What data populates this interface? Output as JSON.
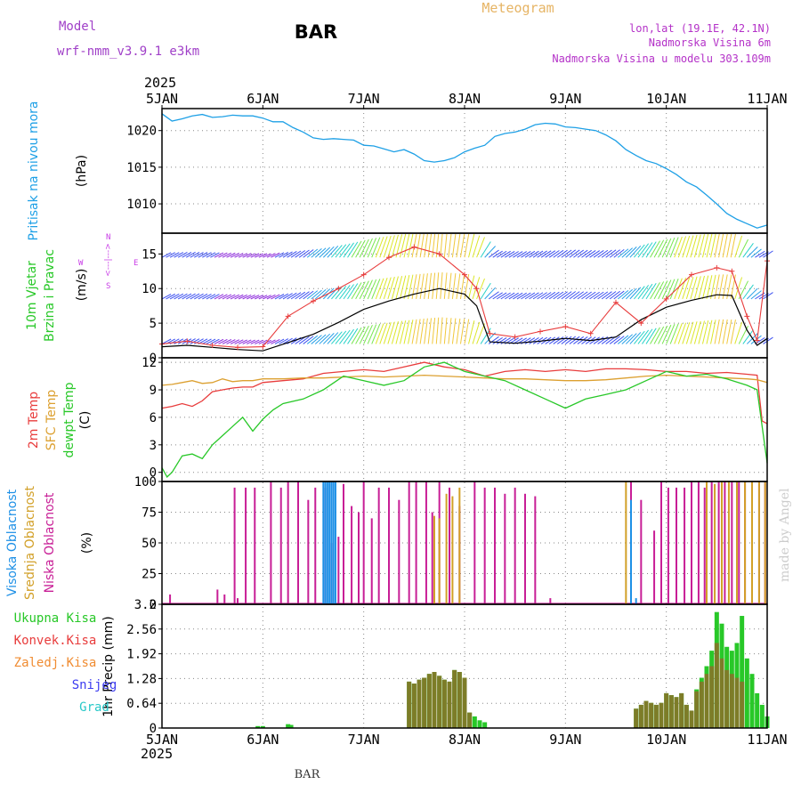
{
  "header": {
    "model_label": "Model",
    "model_name": "wrf-nmm_v3.9.1 e3km",
    "station": "BAR",
    "title": "Meteogram",
    "lonlat": "lon,lat (19.1E, 42.1N)",
    "altitude": "Nadmorska Visina 6m",
    "model_altitude": "Nadmorska Visina u modelu 303.109m",
    "year_top": "2025",
    "year_bottom": "2025",
    "footer_station": "BAR",
    "credit": "made by Angel"
  },
  "colors": {
    "pressure": "#1ea0e6",
    "temp2m": "#e83c3c",
    "sfc": "#dca030",
    "dewpt": "#28c828",
    "cloud_high": "#1e90e6",
    "cloud_mid": "#d2a028",
    "cloud_low": "#c81e96",
    "precip_total": "#28c828",
    "precip_conv": "#e83c3c",
    "precip_frz": "#f08c32",
    "snow": "#3c3cf0",
    "grad": "#28c8c8",
    "gust": "#e83c3c",
    "wind_mean": "#000000",
    "model_label": "#a040c8",
    "title": "#e6b464",
    "info": "#b432c8",
    "credit": "#cccccc",
    "wind_axis": "#c83ce6"
  },
  "time_axis": {
    "start_day": 5,
    "end_day": 11,
    "ticks": [
      "5JAN",
      "6JAN",
      "7JAN",
      "8JAN",
      "9JAN",
      "10JAN",
      "11JAN"
    ]
  },
  "chart_data": [
    {
      "id": "pressure",
      "type": "line",
      "ylabel": "Pritisak na nivou mora",
      "units": "(hPa)",
      "ylim": [
        1006,
        1023
      ],
      "yticks": [
        1010,
        1015,
        1020
      ],
      "x": [
        5.0,
        5.1,
        5.2,
        5.3,
        5.4,
        5.5,
        5.6,
        5.7,
        5.8,
        5.9,
        6.0,
        6.1,
        6.2,
        6.3,
        6.4,
        6.5,
        6.6,
        6.7,
        6.8,
        6.9,
        7.0,
        7.1,
        7.2,
        7.3,
        7.4,
        7.5,
        7.6,
        7.7,
        7.8,
        7.9,
        8.0,
        8.1,
        8.2,
        8.3,
        8.4,
        8.5,
        8.6,
        8.7,
        8.8,
        8.9,
        9.0,
        9.1,
        9.2,
        9.3,
        9.4,
        9.5,
        9.6,
        9.7,
        9.8,
        9.9,
        10.0,
        10.1,
        10.2,
        10.3,
        10.4,
        10.5,
        10.6,
        10.7,
        10.8,
        10.9,
        11.0
      ],
      "values": [
        1022.3,
        1021.3,
        1021.6,
        1022.0,
        1022.2,
        1021.8,
        1021.9,
        1022.1,
        1022.0,
        1022.0,
        1021.7,
        1021.2,
        1021.2,
        1020.4,
        1019.8,
        1019.0,
        1018.8,
        1018.9,
        1018.8,
        1018.7,
        1018.0,
        1017.9,
        1017.5,
        1017.1,
        1017.4,
        1016.8,
        1015.9,
        1015.7,
        1015.9,
        1016.3,
        1017.1,
        1017.6,
        1018.0,
        1019.2,
        1019.6,
        1019.8,
        1020.2,
        1020.8,
        1021.0,
        1020.9,
        1020.5,
        1020.4,
        1020.2,
        1020.0,
        1019.4,
        1018.6,
        1017.4,
        1016.6,
        1015.9,
        1015.5,
        1014.8,
        1014.0,
        1013.0,
        1012.3,
        1011.2,
        1010.0,
        1008.7,
        1007.9,
        1007.3,
        1006.7,
        1007.1
      ]
    },
    {
      "id": "wind",
      "type": "line",
      "ylabel": [
        "10m Vjetar",
        "Brzina i Pravac"
      ],
      "units": "(m/s)",
      "ylim": [
        0,
        18
      ],
      "yticks": [
        0,
        5,
        10,
        15
      ],
      "compass": {
        "n": "N",
        "s": "S",
        "e": "E",
        "w": "W",
        "arrow": "<---|--->"
      },
      "series": [
        {
          "name": "mean wind",
          "x": [
            5.0,
            5.25,
            5.5,
            5.75,
            6.0,
            6.25,
            6.5,
            6.75,
            7.0,
            7.25,
            7.5,
            7.75,
            8.0,
            8.12,
            8.25,
            8.5,
            8.75,
            9.0,
            9.25,
            9.5,
            9.75,
            10.0,
            10.25,
            10.5,
            10.65,
            10.8,
            10.9,
            11.0
          ],
          "values": [
            1.6,
            1.8,
            1.5,
            1.2,
            1.0,
            2.2,
            3.4,
            5.1,
            7.0,
            8.2,
            9.2,
            10.0,
            9.2,
            7.5,
            2.3,
            2.1,
            2.4,
            2.8,
            2.5,
            3.0,
            5.5,
            7.3,
            8.3,
            9.1,
            9.0,
            4.0,
            1.8,
            2.8
          ]
        },
        {
          "name": "gust",
          "x": [
            5.0,
            5.25,
            5.5,
            5.75,
            6.0,
            6.25,
            6.5,
            6.75,
            7.0,
            7.25,
            7.5,
            7.75,
            8.0,
            8.12,
            8.25,
            8.5,
            8.75,
            9.0,
            9.25,
            9.5,
            9.75,
            10.0,
            10.25,
            10.5,
            10.65,
            10.8,
            10.9,
            11.0
          ],
          "values": [
            2.0,
            2.4,
            1.8,
            1.5,
            1.6,
            6.0,
            8.2,
            10.0,
            12.0,
            14.5,
            16.0,
            15.0,
            12.0,
            10.0,
            3.5,
            3.0,
            3.8,
            4.5,
            3.5,
            8.0,
            5.0,
            8.5,
            12.0,
            13.0,
            12.5,
            6.0,
            2.5,
            14.0
          ]
        }
      ]
    },
    {
      "id": "temperature",
      "type": "line",
      "ylabel": [
        "2m Temp",
        "SFC Temp",
        "dewpt Temp"
      ],
      "units": "(C)",
      "ylim": [
        -1,
        12.5
      ],
      "yticks": [
        0,
        3,
        6,
        9,
        12
      ],
      "series": [
        {
          "name": "2m Temp",
          "x": [
            5.0,
            5.1,
            5.2,
            5.3,
            5.4,
            5.5,
            5.6,
            5.7,
            5.8,
            5.9,
            6.0,
            6.2,
            6.4,
            6.6,
            6.8,
            7.0,
            7.2,
            7.4,
            7.6,
            7.8,
            8.0,
            8.2,
            8.4,
            8.6,
            8.8,
            9.0,
            9.2,
            9.4,
            9.6,
            9.8,
            10.0,
            10.2,
            10.4,
            10.6,
            10.8,
            10.9,
            10.95,
            11.0
          ],
          "values": [
            7.0,
            7.2,
            7.5,
            7.2,
            7.8,
            8.8,
            9.0,
            9.2,
            9.3,
            9.3,
            9.8,
            10.0,
            10.2,
            10.8,
            11.0,
            11.2,
            11.0,
            11.5,
            12.0,
            11.5,
            11.2,
            10.5,
            11.0,
            11.2,
            11.0,
            11.2,
            11.0,
            11.3,
            11.3,
            11.2,
            11.0,
            11.0,
            10.8,
            10.9,
            10.7,
            10.6,
            5.6,
            5.3
          ]
        },
        {
          "name": "SFC Temp",
          "x": [
            5.0,
            5.1,
            5.2,
            5.3,
            5.4,
            5.5,
            5.6,
            5.7,
            5.8,
            5.9,
            6.0,
            6.2,
            6.4,
            6.6,
            6.8,
            7.0,
            7.2,
            7.4,
            7.6,
            7.8,
            8.0,
            8.2,
            8.4,
            8.6,
            8.8,
            9.0,
            9.2,
            9.4,
            9.6,
            9.8,
            10.0,
            10.2,
            10.4,
            10.6,
            10.8,
            10.9,
            11.0
          ],
          "values": [
            9.5,
            9.6,
            9.8,
            10.0,
            9.7,
            9.8,
            10.2,
            9.9,
            10.0,
            10.0,
            10.2,
            10.2,
            10.3,
            10.3,
            10.4,
            10.5,
            10.4,
            10.5,
            10.6,
            10.5,
            10.4,
            10.3,
            10.2,
            10.2,
            10.1,
            10.0,
            10.0,
            10.1,
            10.3,
            10.5,
            10.6,
            10.5,
            10.4,
            10.3,
            10.2,
            10.1,
            9.8
          ]
        },
        {
          "name": "dewpt Temp",
          "x": [
            5.0,
            5.05,
            5.1,
            5.2,
            5.3,
            5.4,
            5.5,
            5.6,
            5.7,
            5.8,
            5.9,
            6.0,
            6.1,
            6.2,
            6.4,
            6.6,
            6.8,
            7.0,
            7.2,
            7.4,
            7.6,
            7.8,
            8.0,
            8.2,
            8.4,
            8.6,
            8.8,
            9.0,
            9.2,
            9.4,
            9.6,
            9.8,
            10.0,
            10.2,
            10.4,
            10.6,
            10.8,
            10.9,
            11.0
          ],
          "values": [
            0.5,
            -0.5,
            0.0,
            1.8,
            2.0,
            1.5,
            3.0,
            4.0,
            5.0,
            6.0,
            4.5,
            5.8,
            6.8,
            7.5,
            8.0,
            9.0,
            10.5,
            10.0,
            9.5,
            10.0,
            11.5,
            12.0,
            11.0,
            10.5,
            10.0,
            9.0,
            8.0,
            7.0,
            8.0,
            8.5,
            9.0,
            10.0,
            11.0,
            10.5,
            10.7,
            10.2,
            9.5,
            9.0,
            1.0
          ]
        }
      ]
    },
    {
      "id": "cloud",
      "type": "bar",
      "ylabel": [
        "Visoka Oblacnost",
        "Srednja Oblacnost",
        "Niska Oblacnost"
      ],
      "units": "(%)",
      "ylim": [
        0,
        100
      ],
      "yticks": [
        0,
        25,
        50,
        75,
        100
      ],
      "series": [
        {
          "name": "Niska Oblacnost",
          "x": [
            5.08,
            5.55,
            5.62,
            5.72,
            5.75,
            5.83,
            5.92,
            6.08,
            6.18,
            6.25,
            6.35,
            6.45,
            6.52,
            6.62,
            6.68,
            6.75,
            6.8,
            6.88,
            6.95,
            7.0,
            7.08,
            7.15,
            7.25,
            7.35,
            7.45,
            7.52,
            7.62,
            7.68,
            7.75,
            7.85,
            7.95,
            8.1,
            8.2,
            8.3,
            8.4,
            8.5,
            8.6,
            8.7,
            8.85,
            9.65,
            9.75,
            9.88,
            9.95,
            10.02,
            10.1,
            10.18,
            10.25,
            10.32,
            10.38,
            10.45,
            10.52,
            10.58,
            10.65,
            10.72,
            10.78,
            10.85,
            10.92,
            10.98
          ],
          "values": [
            8,
            12,
            8,
            95,
            5,
            95,
            95,
            100,
            95,
            100,
            100,
            85,
            95,
            95,
            50,
            55,
            98,
            80,
            75,
            100,
            70,
            95,
            95,
            85,
            100,
            100,
            100,
            75,
            100,
            95,
            80,
            100,
            95,
            95,
            90,
            95,
            90,
            88,
            5,
            100,
            85,
            60,
            100,
            95,
            95,
            95,
            100,
            100,
            95,
            100,
            100,
            100,
            100,
            100,
            100,
            100,
            100,
            100
          ]
        },
        {
          "name": "Srednja Oblacnost",
          "x": [
            7.7,
            7.75,
            7.82,
            7.88,
            7.95,
            9.6,
            10.4,
            10.48,
            10.55,
            10.62,
            10.7,
            10.78,
            10.85,
            10.92,
            10.98
          ],
          "values": [
            72,
            70,
            90,
            88,
            95,
            100,
            100,
            98,
            100,
            100,
            100,
            100,
            100,
            100,
            100
          ]
        },
        {
          "name": "Visoka Oblacnost",
          "x": [
            6.6,
            6.62,
            6.64,
            6.66,
            6.68,
            6.7,
            6.72,
            9.65,
            9.7
          ],
          "values": [
            100,
            100,
            100,
            100,
            100,
            100,
            100,
            85,
            5
          ]
        }
      ]
    },
    {
      "id": "precip",
      "type": "bar",
      "ylabel": "1hr Precip",
      "units": "(mm)",
      "ylim": [
        0,
        3.2
      ],
      "yticks": [
        0,
        0.64,
        1.28,
        1.92,
        2.56,
        3.2
      ],
      "ytick_labels": [
        "0",
        "0.64",
        "1.28",
        "1.92",
        "2.56",
        "3.2"
      ],
      "legend": [
        "Ukupna Kisa",
        "Konvek.Kisa",
        "Zaledj.Kisa",
        "Snijeg",
        "Grad"
      ],
      "total": {
        "x": [
          5.95,
          6.0,
          6.25,
          6.28,
          7.45,
          7.5,
          7.55,
          7.6,
          7.65,
          7.7,
          7.75,
          7.8,
          7.85,
          7.9,
          7.95,
          8.0,
          8.05,
          8.1,
          8.15,
          8.2,
          9.7,
          9.75,
          9.8,
          9.85,
          9.9,
          9.95,
          10.0,
          10.05,
          10.1,
          10.15,
          10.2,
          10.25,
          10.3,
          10.35,
          10.4,
          10.45,
          10.5,
          10.55,
          10.6,
          10.65,
          10.7,
          10.75,
          10.8,
          10.85,
          10.9,
          10.95,
          11.0
        ],
        "values": [
          0.05,
          0.05,
          0.1,
          0.08,
          1.2,
          1.15,
          1.25,
          1.3,
          1.4,
          1.45,
          1.35,
          1.25,
          1.2,
          1.5,
          1.45,
          1.3,
          0.4,
          0.3,
          0.2,
          0.15,
          0.5,
          0.6,
          0.7,
          0.65,
          0.6,
          0.65,
          0.9,
          0.85,
          0.8,
          0.9,
          0.6,
          0.45,
          1.0,
          1.3,
          1.6,
          2.0,
          3.0,
          2.7,
          2.1,
          2.0,
          2.2,
          2.9,
          1.8,
          1.4,
          0.9,
          0.6,
          0.3
        ]
      },
      "convective": {
        "x": [
          7.45,
          7.5,
          7.55,
          7.6,
          7.65,
          7.7,
          7.75,
          7.8,
          7.85,
          7.9,
          7.95,
          8.0,
          8.05,
          9.7,
          9.75,
          9.8,
          9.85,
          9.9,
          9.95,
          10.0,
          10.05,
          10.1,
          10.15,
          10.2,
          10.25,
          10.3,
          10.35,
          10.4,
          10.45,
          10.5,
          10.55,
          10.6,
          10.65,
          10.7,
          10.75
        ],
        "values": [
          1.2,
          1.15,
          1.25,
          1.3,
          1.4,
          1.45,
          1.35,
          1.25,
          1.2,
          1.5,
          1.45,
          1.3,
          0.4,
          0.5,
          0.6,
          0.7,
          0.65,
          0.6,
          0.65,
          0.9,
          0.85,
          0.8,
          0.9,
          0.6,
          0.45,
          0.95,
          1.2,
          1.4,
          1.6,
          2.2,
          1.8,
          1.5,
          1.4,
          1.3,
          1.2
        ]
      }
    }
  ]
}
